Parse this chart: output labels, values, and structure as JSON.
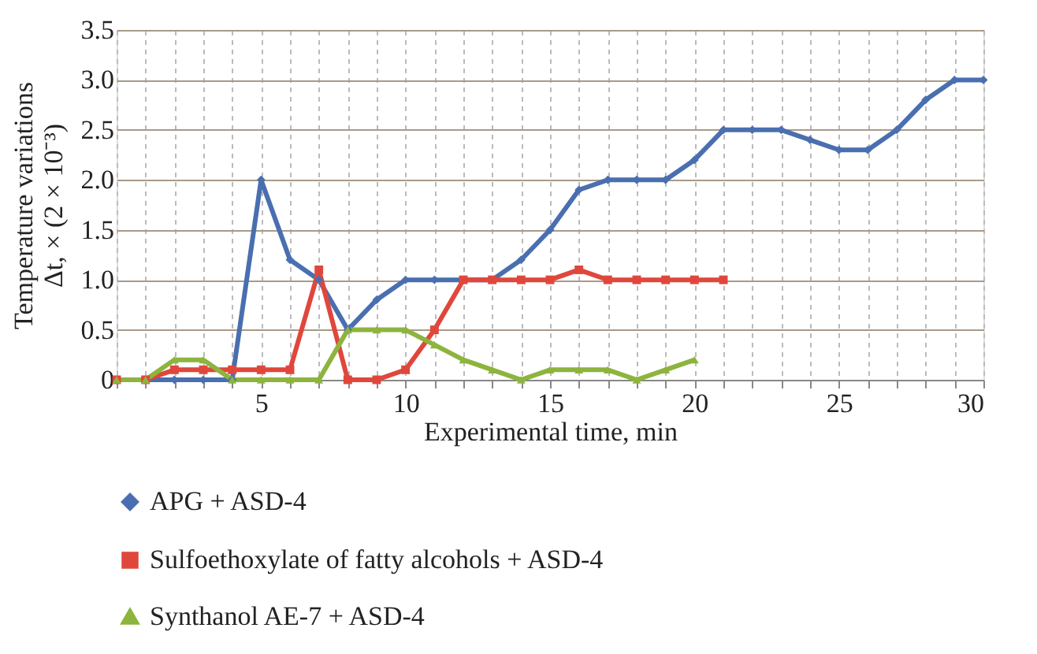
{
  "chart_data": {
    "type": "line",
    "xlabel": "Experimental time, min",
    "ylabel": "Temperature variations\nΔt, × (2 × 10⁻³)",
    "xlim": [
      0,
      30
    ],
    "xticks": [
      {
        "value": 0,
        "label": null
      },
      {
        "value": 1,
        "label": null
      },
      {
        "value": 2,
        "label": null
      },
      {
        "value": 3,
        "label": null
      },
      {
        "value": 4,
        "label": null
      },
      5,
      {
        "value": 6,
        "label": null
      },
      {
        "value": 7,
        "label": null
      },
      {
        "value": 8,
        "label": null
      },
      {
        "value": 9,
        "label": null
      },
      10,
      {
        "value": 11,
        "label": null
      },
      {
        "value": 12,
        "label": null
      },
      {
        "value": 13,
        "label": null
      },
      {
        "value": 14,
        "label": null
      },
      15,
      {
        "value": 16,
        "label": null
      },
      {
        "value": 17,
        "label": null
      },
      {
        "value": 18,
        "label": null
      },
      {
        "value": 19,
        "label": null
      },
      20,
      {
        "value": 21,
        "label": null
      },
      {
        "value": 22,
        "label": null
      },
      {
        "value": 23,
        "label": null
      },
      {
        "value": 24,
        "label": null
      },
      25,
      {
        "value": 26,
        "label": null
      },
      {
        "value": 27,
        "label": null
      },
      {
        "value": 28,
        "label": null
      },
      {
        "value": 29,
        "label": null
      },
      30
    ],
    "ylim": [
      0,
      3.5
    ],
    "yticks": [
      0,
      0.5,
      {
        "value": 1,
        "label": "1.0"
      },
      1.5,
      {
        "value": 2,
        "label": "2.0"
      },
      2.5,
      {
        "value": 3,
        "label": "3.0"
      },
      3.5
    ],
    "grid": true,
    "legend": "bottom",
    "line_style": "solid",
    "series": [
      {
        "name": "APG + ASD-4",
        "color": "#4a6fb0",
        "marker": "diamond",
        "x": [
          0,
          1,
          2,
          3,
          4,
          5,
          6,
          7,
          8,
          9,
          10,
          11,
          12,
          13,
          14,
          15,
          16,
          17,
          18,
          19,
          20,
          21,
          22,
          23,
          24,
          25,
          26,
          27,
          28,
          29,
          30
        ],
        "values": [
          0,
          0,
          0,
          0,
          0,
          2.0,
          1.2,
          1.0,
          0.5,
          0.8,
          1.0,
          1.0,
          1.0,
          1.0,
          1.2,
          1.5,
          1.9,
          2.0,
          2.0,
          2.0,
          2.2,
          2.5,
          2.5,
          2.5,
          2.4,
          2.3,
          2.3,
          2.5,
          2.8,
          3.0,
          3.0
        ]
      },
      {
        "name": "Sulfoethoxylate of fatty alcohols + ASD-4",
        "color": "#e0473c",
        "marker": "square",
        "x": [
          0,
          1,
          2,
          3,
          4,
          5,
          6,
          7,
          8,
          9,
          10,
          11,
          12,
          13,
          14,
          15,
          16,
          17,
          18,
          19,
          20,
          21
        ],
        "values": [
          0,
          0,
          0.1,
          0.1,
          0.1,
          0.1,
          0.1,
          1.1,
          0,
          0,
          0.1,
          0.5,
          1.0,
          1.0,
          1.0,
          1.0,
          1.1,
          1.0,
          1.0,
          1.0,
          1.0,
          1.0
        ]
      },
      {
        "name": "Synthanol AE-7 + ASD-4",
        "color": "#8db43e",
        "marker": "triangle",
        "x": [
          0,
          1,
          2,
          3,
          4,
          5,
          6,
          7,
          8,
          9,
          10,
          11,
          12,
          13,
          14,
          15,
          16,
          17,
          18,
          19,
          20
        ],
        "values": [
          0,
          0,
          0.2,
          0.2,
          0,
          0,
          0,
          0,
          0.5,
          0.5,
          0.5,
          0.35,
          0.2,
          0.1,
          0,
          0.1,
          0.1,
          0.1,
          0,
          0.1,
          0.2
        ]
      }
    ]
  }
}
